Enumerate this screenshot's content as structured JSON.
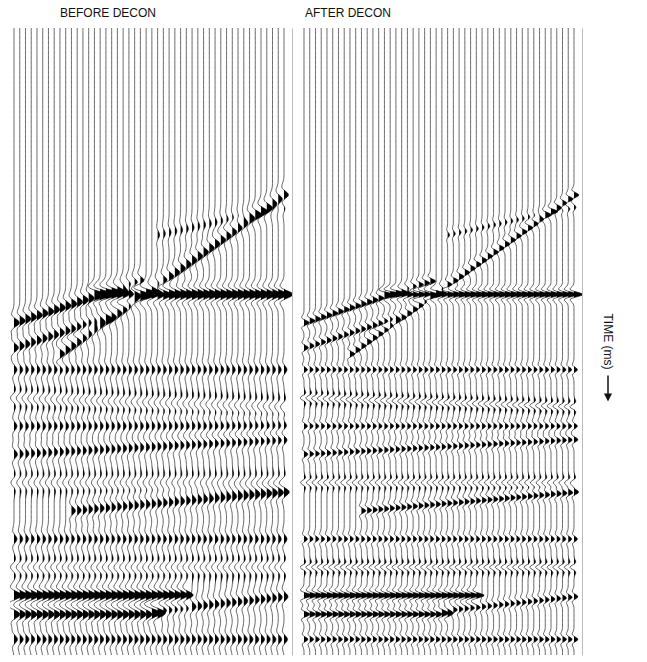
{
  "chart_data": [
    {
      "type": "wiggle",
      "title": "BEFORE DECON",
      "traces": 48,
      "ylim": [
        0,
        1000
      ],
      "yticks": [],
      "tick_labels": false,
      "wavelet_period_ms": 36,
      "events": [
        {
          "time": 330,
          "from_trace": 25,
          "to_trace": 47,
          "dip": -2,
          "amplitude": 0.4
        },
        {
          "time": 520,
          "from_trace": 8,
          "to_trace": 47,
          "dip": -6.5,
          "amplitude": 1.0
        },
        {
          "time": 425,
          "from_trace": 14,
          "to_trace": 47,
          "dip": 0,
          "amplitude": 1.8
        },
        {
          "time": 470,
          "from_trace": 0,
          "to_trace": 22,
          "dip": -3,
          "amplitude": 1.1
        },
        {
          "time": 510,
          "from_trace": 0,
          "to_trace": 16,
          "dip": -3,
          "amplitude": 0.9
        },
        {
          "time": 545,
          "from_trace": 0,
          "to_trace": 47,
          "dip": 0,
          "amplitude": 0.6
        },
        {
          "time": 590,
          "from_trace": 0,
          "to_trace": 47,
          "dip": 0.3,
          "amplitude": -0.7
        },
        {
          "time": 635,
          "from_trace": 0,
          "to_trace": 47,
          "dip": 0,
          "amplitude": 0.6
        },
        {
          "time": 680,
          "from_trace": 0,
          "to_trace": 47,
          "dip": -0.5,
          "amplitude": 0.7
        },
        {
          "time": 725,
          "from_trace": 0,
          "to_trace": 47,
          "dip": 0,
          "amplitude": -0.6
        },
        {
          "time": 770,
          "from_trace": 10,
          "to_trace": 47,
          "dip": -0.8,
          "amplitude": 0.8
        },
        {
          "time": 815,
          "from_trace": 0,
          "to_trace": 47,
          "dip": 0,
          "amplitude": 0.6
        },
        {
          "time": 860,
          "from_trace": 0,
          "to_trace": 47,
          "dip": 0,
          "amplitude": -0.7
        },
        {
          "time": 905,
          "from_trace": 0,
          "to_trace": 30,
          "dip": 0,
          "amplitude": 1.6
        },
        {
          "time": 935,
          "from_trace": 0,
          "to_trace": 25,
          "dip": 0,
          "amplitude": 1.2
        },
        {
          "time": 930,
          "from_trace": 24,
          "to_trace": 47,
          "dip": -1,
          "amplitude": 0.8
        },
        {
          "time": 975,
          "from_trace": 0,
          "to_trace": 47,
          "dip": 0,
          "amplitude": 0.7
        }
      ]
    },
    {
      "type": "wiggle",
      "title": "AFTER DECON",
      "ylabel": "TIME (ms)",
      "traces": 48,
      "ylim": [
        0,
        1000
      ],
      "yticks": [],
      "tick_labels": false,
      "wavelet_period_ms": 22,
      "events": [
        {
          "time": 330,
          "from_trace": 25,
          "to_trace": 47,
          "dip": -2,
          "amplitude": 0.4
        },
        {
          "time": 520,
          "from_trace": 8,
          "to_trace": 47,
          "dip": -6.5,
          "amplitude": 1.0
        },
        {
          "time": 425,
          "from_trace": 14,
          "to_trace": 47,
          "dip": 0,
          "amplitude": 1.8
        },
        {
          "time": 470,
          "from_trace": 0,
          "to_trace": 22,
          "dip": -3,
          "amplitude": 1.1
        },
        {
          "time": 510,
          "from_trace": 0,
          "to_trace": 16,
          "dip": -3,
          "amplitude": 0.9
        },
        {
          "time": 545,
          "from_trace": 0,
          "to_trace": 47,
          "dip": 0,
          "amplitude": 0.7
        },
        {
          "time": 590,
          "from_trace": 0,
          "to_trace": 47,
          "dip": 0.3,
          "amplitude": -0.8
        },
        {
          "time": 635,
          "from_trace": 0,
          "to_trace": 47,
          "dip": 0,
          "amplitude": 0.7
        },
        {
          "time": 680,
          "from_trace": 0,
          "to_trace": 47,
          "dip": -0.5,
          "amplitude": 0.8
        },
        {
          "time": 725,
          "from_trace": 0,
          "to_trace": 47,
          "dip": 0,
          "amplitude": -0.7
        },
        {
          "time": 770,
          "from_trace": 10,
          "to_trace": 47,
          "dip": -0.8,
          "amplitude": 0.9
        },
        {
          "time": 815,
          "from_trace": 0,
          "to_trace": 47,
          "dip": 0,
          "amplitude": 0.7
        },
        {
          "time": 860,
          "from_trace": 0,
          "to_trace": 47,
          "dip": 0,
          "amplitude": -0.8
        },
        {
          "time": 905,
          "from_trace": 0,
          "to_trace": 30,
          "dip": 0,
          "amplitude": 1.6
        },
        {
          "time": 935,
          "from_trace": 0,
          "to_trace": 25,
          "dip": 0,
          "amplitude": 1.2
        },
        {
          "time": 930,
          "from_trace": 24,
          "to_trace": 47,
          "dip": -1,
          "amplitude": 0.8
        },
        {
          "time": 975,
          "from_trace": 0,
          "to_trace": 47,
          "dip": 0,
          "amplitude": 0.8
        }
      ]
    }
  ]
}
